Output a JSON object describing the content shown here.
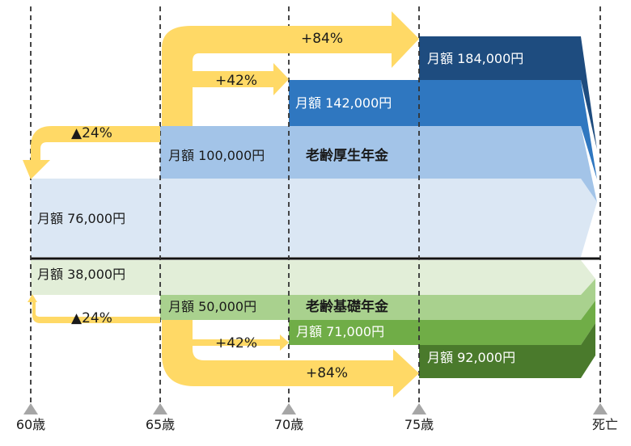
{
  "colors": {
    "kosei_base": "#dbe7f4",
    "kosei_100k": "#a3c4e8",
    "kosei_142k": "#2f77c0",
    "kosei_184k": "#1e4c7f",
    "kiso_base": "#e2eed8",
    "kiso_50k": "#a9d18e",
    "kiso_71k": "#70ad47",
    "kiso_92k": "#4a7a2c",
    "arrow": "#ffd966",
    "marker": "#a6a6a6"
  },
  "kosei": {
    "title": "老齢厚生年金",
    "amounts": {
      "age60": "月額 76,000円",
      "age65": "月額 100,000円",
      "age70": "月額 142,000円",
      "age75": "月額 184,000円"
    }
  },
  "kiso": {
    "title": "老齢基礎年金",
    "amounts": {
      "age60": "月額 38,000円",
      "age65": "月額 50,000円",
      "age70": "月額 71,000円",
      "age75": "月額 92,000円"
    }
  },
  "changes": {
    "early_upper": "▲24%",
    "late70_upper": "+42%",
    "late75_upper": "+84%",
    "early_lower": "▲24%",
    "late70_lower": "+42%",
    "late75_lower": "+84%"
  },
  "ages": [
    "60歳",
    "65歳",
    "70歳",
    "75歳",
    "死亡"
  ]
}
